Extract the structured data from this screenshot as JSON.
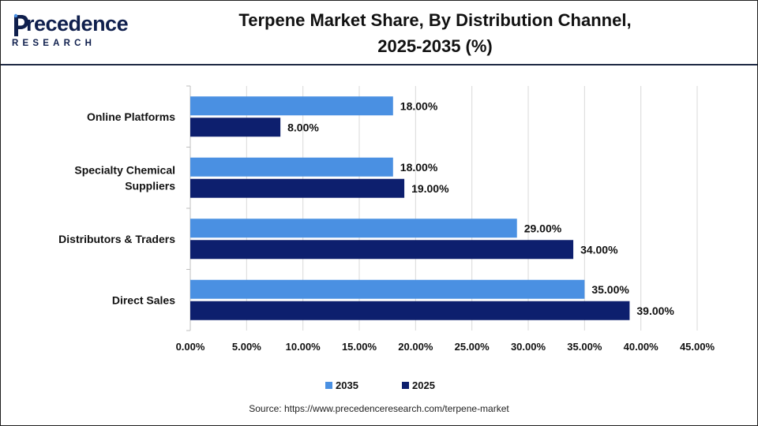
{
  "logo": {
    "word": "recedence",
    "sub": "RESEARCH"
  },
  "title_lines": [
    "Terpene Market Share, By Distribution Channel,",
    "2025-2035 (%)"
  ],
  "colors": {
    "2035": "#4a90e2",
    "2025": "#0d1f6e",
    "grid": "#d9d9d9",
    "axis": "#bfbfbf",
    "logo": "#0f1f4d"
  },
  "chart_data": {
    "type": "bar",
    "orientation": "horizontal",
    "categories": [
      "Online Platforms",
      "Specialty Chemical Suppliers",
      "Distributors & Traders",
      "Direct Sales"
    ],
    "category_lines": [
      [
        "Online Platforms"
      ],
      [
        "Specialty Chemical",
        "Suppliers"
      ],
      [
        "Distributors & Traders"
      ],
      [
        "Direct Sales"
      ]
    ],
    "series": [
      {
        "name": "2035",
        "values": [
          18,
          18,
          29,
          35
        ],
        "labels": [
          "18.00%",
          "18.00%",
          "29.00%",
          "35.00%"
        ]
      },
      {
        "name": "2025",
        "values": [
          8,
          19,
          34,
          39
        ],
        "labels": [
          "8.00%",
          "19.00%",
          "34.00%",
          "39.00%"
        ]
      }
    ],
    "xlim": [
      0,
      45
    ],
    "xticks": [
      0,
      5,
      10,
      15,
      20,
      25,
      30,
      35,
      40,
      45
    ],
    "xtick_labels": [
      "0.00%",
      "5.00%",
      "10.00%",
      "15.00%",
      "20.00%",
      "25.00%",
      "30.00%",
      "35.00%",
      "40.00%",
      "45.00%"
    ],
    "grid": true,
    "legend_position": "bottom"
  },
  "legend": [
    {
      "label": "2035"
    },
    {
      "label": "2025"
    }
  ],
  "source": "Source: https://www.precedenceresearch.com/terpene-market"
}
